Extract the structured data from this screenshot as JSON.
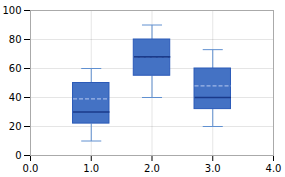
{
  "chart_data": {
    "type": "box",
    "x": [
      1,
      2,
      3
    ],
    "whislo": [
      10,
      40,
      20
    ],
    "q1": [
      22,
      55,
      32
    ],
    "med": [
      30,
      68,
      40
    ],
    "mean": [
      39,
      68,
      48
    ],
    "q3": [
      50,
      80,
      60
    ],
    "whishi": [
      60,
      90,
      73
    ],
    "color": "#4472c4",
    "edge_color": "#2b5ab8",
    "median_color": "#1a3a8a",
    "mean_color": "#a0b8e8",
    "whisker_color": "#6090d0",
    "cap_color": "#6090d0",
    "xlim": [
      0,
      4
    ],
    "ylim": [
      0,
      100
    ],
    "xticks": [
      0,
      1,
      2,
      3,
      4
    ],
    "yticks": [
      0,
      20,
      40,
      60,
      80,
      100
    ],
    "grid": true
  }
}
